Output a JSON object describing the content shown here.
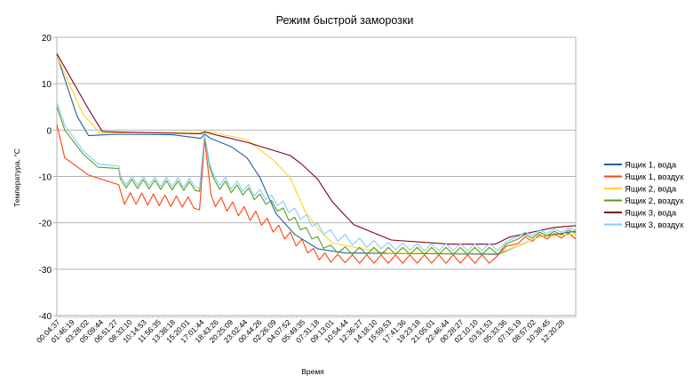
{
  "chart_data": {
    "type": "line",
    "title": "Режим быстрой заморозки",
    "xlabel": "Время",
    "ylabel": "Температура, °C",
    "ylim": [
      -40,
      20
    ],
    "yticks": [
      20,
      10,
      0,
      -10,
      -20,
      -30,
      -40
    ],
    "grid": true,
    "legend_position": "right",
    "categories": [
      "00:04:37",
      "01:46:19",
      "03:28:02",
      "05:09:44",
      "06:51:27",
      "08:33:10",
      "10:14:53",
      "11:56:35",
      "13:38:18",
      "15:20:01",
      "17:01:44",
      "18:43:26",
      "20:25:09",
      "23:02:44",
      "00:44:26",
      "02:26:09",
      "04:07:52",
      "05:49:35",
      "07:31:18",
      "09:13:01",
      "10:54:44",
      "12:36:27",
      "14:18:10",
      "15:59:53",
      "17:41:36",
      "19:23:18",
      "21:05:01",
      "22:46:44",
      "00:28:27",
      "02:10:10",
      "03:51:53",
      "05:33:36",
      "07:15:19",
      "08:57:02",
      "10:38:45",
      "12:20:28"
    ],
    "series": [
      {
        "name": "Ящик 1, вода",
        "color": "#1c5fa5",
        "points": [
          [
            0,
            16.2
          ],
          [
            1.4,
            3
          ],
          [
            2.2,
            -1.2
          ],
          [
            4,
            -0.9
          ],
          [
            8,
            -1
          ],
          [
            10,
            -1.8
          ],
          [
            10.25,
            -0.8
          ],
          [
            10.6,
            -1.7
          ],
          [
            12.1,
            -3.6
          ],
          [
            13.2,
            -6
          ],
          [
            14.1,
            -10.3
          ],
          [
            15.2,
            -18
          ],
          [
            16.5,
            -22.5
          ],
          [
            18.1,
            -25.6
          ],
          [
            20,
            -26.5
          ],
          [
            30.6,
            -26.8
          ],
          [
            32,
            -25
          ],
          [
            33.5,
            -23
          ],
          [
            36,
            -21.8
          ]
        ]
      },
      {
        "name": "Ящик 1, воздух",
        "color": "#ff420e",
        "points": [
          [
            0,
            1.2
          ],
          [
            0.55,
            -6
          ],
          [
            2.2,
            -9.7
          ],
          [
            4.3,
            -11.8
          ],
          [
            4.4,
            -13
          ],
          [
            4.7,
            -16
          ],
          [
            5.1,
            -13.5
          ],
          [
            5.5,
            -16
          ],
          [
            5.9,
            -13.6
          ],
          [
            6.3,
            -16.2
          ],
          [
            6.7,
            -13.8
          ],
          [
            7.1,
            -16.3
          ],
          [
            7.5,
            -14
          ],
          [
            7.9,
            -16.5
          ],
          [
            8.3,
            -14.2
          ],
          [
            8.7,
            -16.6
          ],
          [
            9.1,
            -14.4
          ],
          [
            9.5,
            -16.8
          ],
          [
            9.9,
            -17.2
          ],
          [
            10.25,
            -2
          ],
          [
            10.7,
            -14
          ],
          [
            11,
            -16.5
          ],
          [
            11.4,
            -14.5
          ],
          [
            11.8,
            -17.5
          ],
          [
            12.2,
            -15.5
          ],
          [
            12.6,
            -18.5
          ],
          [
            13,
            -16.5
          ],
          [
            13.4,
            -19.5
          ],
          [
            13.8,
            -17.5
          ],
          [
            14.2,
            -20.5
          ],
          [
            14.6,
            -19
          ],
          [
            15,
            -22
          ],
          [
            15.4,
            -20.5
          ],
          [
            15.8,
            -23.5
          ],
          [
            16.2,
            -22
          ],
          [
            16.6,
            -25
          ],
          [
            17,
            -23.5
          ],
          [
            17.4,
            -26.5
          ],
          [
            17.8,
            -25.5
          ],
          [
            18.2,
            -28
          ],
          [
            18.6,
            -26.5
          ],
          [
            19,
            -28.5
          ],
          [
            19.5,
            -26.8
          ],
          [
            20,
            -28.6
          ],
          [
            20.5,
            -26.9
          ],
          [
            21,
            -28.7
          ],
          [
            21.5,
            -26.9
          ],
          [
            22,
            -28.7
          ],
          [
            22.5,
            -26.9
          ],
          [
            23,
            -28.7
          ],
          [
            23.5,
            -26.9
          ],
          [
            24,
            -28.7
          ],
          [
            24.5,
            -26.9
          ],
          [
            25,
            -28.7
          ],
          [
            25.5,
            -26.9
          ],
          [
            26,
            -28.7
          ],
          [
            26.5,
            -26.9
          ],
          [
            27,
            -28.7
          ],
          [
            27.5,
            -26.9
          ],
          [
            28,
            -28.7
          ],
          [
            28.5,
            -26.9
          ],
          [
            29,
            -28.7
          ],
          [
            29.5,
            -26.9
          ],
          [
            30,
            -28.7
          ],
          [
            30.6,
            -27
          ],
          [
            31.2,
            -25
          ],
          [
            32,
            -24.5
          ],
          [
            32.5,
            -23
          ],
          [
            33,
            -24
          ],
          [
            33.5,
            -22.5
          ],
          [
            34,
            -23.5
          ],
          [
            34.5,
            -22.3
          ],
          [
            35,
            -23.3
          ],
          [
            35.5,
            -22.2
          ],
          [
            36,
            -23.5
          ]
        ]
      },
      {
        "name": "Ящик 2, вода",
        "color": "#ffd320",
        "points": [
          [
            0,
            16
          ],
          [
            1.8,
            3.5
          ],
          [
            3,
            -0.7
          ],
          [
            4,
            -0.5
          ],
          [
            10,
            -0.6
          ],
          [
            10.25,
            -0.3
          ],
          [
            11,
            -0.6
          ],
          [
            13.15,
            -2
          ],
          [
            15,
            -6.4
          ],
          [
            16.2,
            -10.3
          ],
          [
            17.2,
            -17.4
          ],
          [
            18.1,
            -21.2
          ],
          [
            19.1,
            -24.3
          ],
          [
            21.2,
            -25.6
          ],
          [
            23,
            -26.5
          ],
          [
            30.6,
            -26.6
          ],
          [
            32,
            -25
          ],
          [
            33.5,
            -23
          ],
          [
            36,
            -22.5
          ]
        ]
      },
      {
        "name": "Ящик 2, воздух",
        "color": "#579d1c",
        "points": [
          [
            0,
            5
          ],
          [
            0.55,
            0
          ],
          [
            1.8,
            -5.1
          ],
          [
            2.85,
            -8
          ],
          [
            4.3,
            -8.3
          ],
          [
            4.4,
            -10.5
          ],
          [
            4.8,
            -12.5
          ],
          [
            5.2,
            -10.6
          ],
          [
            5.6,
            -12.6
          ],
          [
            6,
            -10.7
          ],
          [
            6.4,
            -12.7
          ],
          [
            6.8,
            -10.8
          ],
          [
            7.2,
            -12.8
          ],
          [
            7.6,
            -10.9
          ],
          [
            8,
            -12.9
          ],
          [
            8.4,
            -11
          ],
          [
            8.8,
            -13
          ],
          [
            9.2,
            -11.1
          ],
          [
            9.6,
            -13
          ],
          [
            9.9,
            -13.2
          ],
          [
            10.25,
            -1
          ],
          [
            10.6,
            -8
          ],
          [
            10.9,
            -10.5
          ],
          [
            11.3,
            -12.8
          ],
          [
            11.7,
            -11
          ],
          [
            12.1,
            -13.5
          ],
          [
            12.5,
            -11.8
          ],
          [
            12.9,
            -14
          ],
          [
            13.3,
            -12.5
          ],
          [
            13.7,
            -15
          ],
          [
            14.1,
            -13.8
          ],
          [
            14.5,
            -16
          ],
          [
            14.9,
            -15.2
          ],
          [
            15.3,
            -17.5
          ],
          [
            15.7,
            -16.8
          ],
          [
            16.1,
            -19.5
          ],
          [
            16.5,
            -18.8
          ],
          [
            16.9,
            -21.5
          ],
          [
            17.3,
            -21
          ],
          [
            17.7,
            -23.5
          ],
          [
            18.1,
            -23
          ],
          [
            18.5,
            -25.5
          ],
          [
            19,
            -24.8
          ],
          [
            19.5,
            -26.5
          ],
          [
            20,
            -25.2
          ],
          [
            20.5,
            -26.8
          ],
          [
            21,
            -25.3
          ],
          [
            21.5,
            -26.8
          ],
          [
            22,
            -25.3
          ],
          [
            22.5,
            -26.8
          ],
          [
            23,
            -25.3
          ],
          [
            23.5,
            -26.8
          ],
          [
            24,
            -25.3
          ],
          [
            24.5,
            -26.8
          ],
          [
            25,
            -25.3
          ],
          [
            25.5,
            -26.8
          ],
          [
            26,
            -25.3
          ],
          [
            26.5,
            -26.8
          ],
          [
            27,
            -25.3
          ],
          [
            27.5,
            -26.8
          ],
          [
            28,
            -25.3
          ],
          [
            28.5,
            -26.8
          ],
          [
            29,
            -25.3
          ],
          [
            29.5,
            -26.8
          ],
          [
            30,
            -25.3
          ],
          [
            30.6,
            -26.8
          ],
          [
            31.2,
            -24.5
          ],
          [
            32,
            -23.5
          ],
          [
            32.5,
            -22.5
          ],
          [
            33,
            -23.3
          ],
          [
            33.5,
            -22
          ],
          [
            34,
            -22.8
          ],
          [
            34.5,
            -21.8
          ],
          [
            35,
            -22.6
          ],
          [
            35.5,
            -21.6
          ],
          [
            36,
            -22.2
          ]
        ]
      },
      {
        "name": "Ящик 3, вода",
        "color": "#7e0021",
        "points": [
          [
            0,
            16.5
          ],
          [
            2.2,
            4.5
          ],
          [
            3.15,
            -0.3
          ],
          [
            4,
            -0.4
          ],
          [
            10,
            -0.8
          ],
          [
            10.25,
            -0.4
          ],
          [
            11,
            -1
          ],
          [
            13.15,
            -2.6
          ],
          [
            16.2,
            -5.5
          ],
          [
            17,
            -7.4
          ],
          [
            18.1,
            -10.6
          ],
          [
            19.1,
            -15.4
          ],
          [
            20.6,
            -20.4
          ],
          [
            23.2,
            -23.7
          ],
          [
            27.3,
            -24.6
          ],
          [
            30.4,
            -24.6
          ],
          [
            31.4,
            -23.1
          ],
          [
            33,
            -22
          ],
          [
            34.5,
            -21
          ],
          [
            36,
            -20.6
          ]
        ]
      },
      {
        "name": "Ящик 3, воздух",
        "color": "#83caff",
        "points": [
          [
            0,
            6
          ],
          [
            0.55,
            1
          ],
          [
            1.8,
            -4.4
          ],
          [
            2.85,
            -7.3
          ],
          [
            4.3,
            -7.8
          ],
          [
            4.4,
            -9.8
          ],
          [
            4.8,
            -11.8
          ],
          [
            5.2,
            -9.9
          ],
          [
            5.6,
            -11.9
          ],
          [
            6,
            -10
          ],
          [
            6.4,
            -12
          ],
          [
            6.8,
            -10.1
          ],
          [
            7.2,
            -12.1
          ],
          [
            7.6,
            -10.2
          ],
          [
            8,
            -12.2
          ],
          [
            8.4,
            -10.3
          ],
          [
            8.8,
            -12.3
          ],
          [
            9.2,
            -10.4
          ],
          [
            9.6,
            -12.3
          ],
          [
            9.9,
            -12.5
          ],
          [
            10.25,
            -1
          ],
          [
            10.6,
            -7.3
          ],
          [
            10.9,
            -9.8
          ],
          [
            11.3,
            -12
          ],
          [
            11.7,
            -10.2
          ],
          [
            12.1,
            -12.7
          ],
          [
            12.5,
            -11
          ],
          [
            12.9,
            -13.2
          ],
          [
            13.3,
            -11.7
          ],
          [
            13.7,
            -14.2
          ],
          [
            14.1,
            -12.8
          ],
          [
            14.5,
            -15
          ],
          [
            14.9,
            -14
          ],
          [
            15.3,
            -16.3
          ],
          [
            15.7,
            -15.3
          ],
          [
            16.1,
            -17.8
          ],
          [
            16.5,
            -16.8
          ],
          [
            16.9,
            -19.3
          ],
          [
            17.3,
            -18.3
          ],
          [
            17.7,
            -20.8
          ],
          [
            18.1,
            -20
          ],
          [
            18.5,
            -22.5
          ],
          [
            19,
            -21.5
          ],
          [
            19.5,
            -24
          ],
          [
            20,
            -22.5
          ],
          [
            20.5,
            -24.8
          ],
          [
            21,
            -23.3
          ],
          [
            21.5,
            -25.3
          ],
          [
            22,
            -23.8
          ],
          [
            22.5,
            -25.6
          ],
          [
            23,
            -24.2
          ],
          [
            23.5,
            -25.8
          ],
          [
            24,
            -24.4
          ],
          [
            24.5,
            -25.9
          ],
          [
            25,
            -24.5
          ],
          [
            25.5,
            -26
          ],
          [
            26,
            -24.5
          ],
          [
            26.5,
            -26
          ],
          [
            27,
            -24.5
          ],
          [
            27.5,
            -26
          ],
          [
            28,
            -24.5
          ],
          [
            28.5,
            -26
          ],
          [
            29,
            -24.5
          ],
          [
            29.5,
            -26
          ],
          [
            30,
            -24.5
          ],
          [
            30.6,
            -26
          ],
          [
            31.2,
            -24
          ],
          [
            32,
            -23
          ],
          [
            32.5,
            -22
          ],
          [
            33,
            -22.8
          ],
          [
            33.5,
            -21.5
          ],
          [
            34,
            -22.3
          ],
          [
            34.5,
            -21.3
          ],
          [
            35,
            -22
          ],
          [
            35.5,
            -21.2
          ],
          [
            36,
            -21.6
          ]
        ]
      }
    ]
  }
}
